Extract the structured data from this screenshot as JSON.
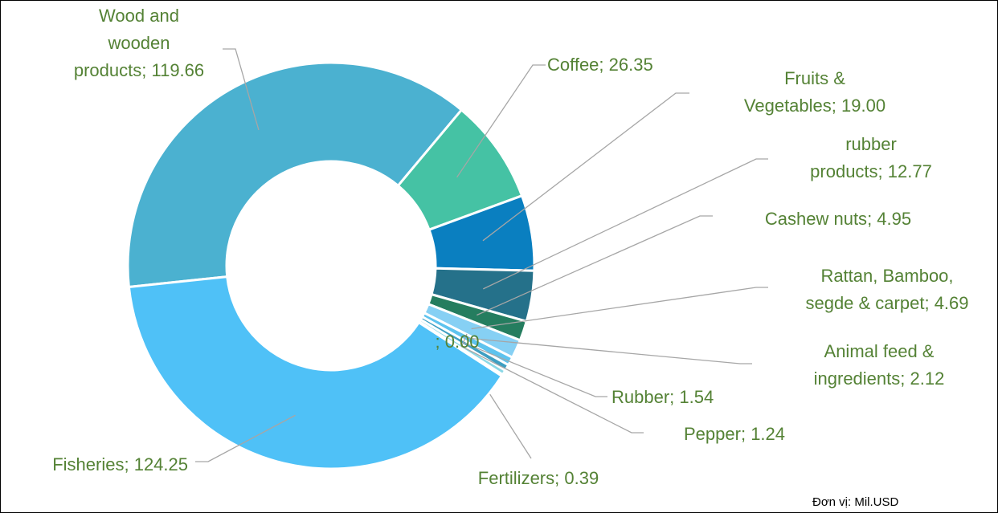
{
  "chart_data": {
    "type": "donut",
    "categories": [
      "Wood and wooden products",
      "Coffee",
      "Fruits & Vegetables",
      "rubber products",
      "Cashew nuts",
      "Rattan, Bamboo, segde & carpet",
      "Animal feed & ingredients",
      "Rubber",
      "Pepper",
      null,
      "Fertilizers",
      "Fisheries"
    ],
    "values": [
      119.66,
      26.35,
      19.0,
      12.77,
      4.95,
      4.69,
      2.12,
      1.54,
      1.24,
      0,
      0.39,
      124.25
    ],
    "value_labels": [
      "119.66",
      "26.35",
      "19.00",
      "12.77",
      "4.95",
      "4.69",
      "2.12",
      "1.54",
      "1.24",
      "0.00",
      "0.39",
      "124.25"
    ],
    "label_separator": "; ",
    "colors": [
      "#4bb1d0",
      "#45c2a4",
      "#0a7fc0",
      "#25718a",
      "#257d5f",
      "#86d0f4",
      "#5ec3ee",
      "#3e9fc2",
      "#8ad8e6",
      "#9bd3ea",
      "#2f8fb0",
      "#4fc1f7"
    ],
    "label_color": "#548235",
    "unit_note": "Đơn vị: Mil.USD"
  }
}
